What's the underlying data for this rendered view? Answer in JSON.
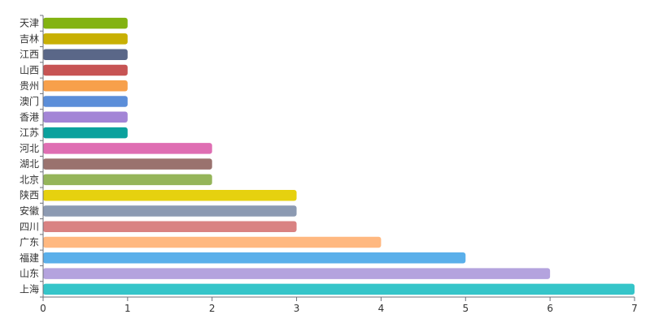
{
  "chart_data": {
    "type": "bar",
    "orientation": "horizontal",
    "categories": [
      "天津",
      "吉林",
      "江西",
      "山西",
      "贵州",
      "澳门",
      "香港",
      "江苏",
      "河北",
      "湖北",
      "北京",
      "陕西",
      "安徽",
      "四川",
      "广东",
      "福建",
      "山东",
      "上海"
    ],
    "values": [
      1,
      1,
      1,
      1,
      1,
      1,
      1,
      1,
      2,
      2,
      2,
      3,
      3,
      3,
      4,
      5,
      6,
      7
    ],
    "colors": [
      "#83b311",
      "#c8b004",
      "#5a6788",
      "#c75454",
      "#f7a04b",
      "#5b8ed9",
      "#a385d6",
      "#0ba19d",
      "#df6eb3",
      "#9a726e",
      "#95b55a",
      "#e6d10f",
      "#8c9ab2",
      "#d98282",
      "#ffb880",
      "#5aafea",
      "#b4a3de",
      "#35c5c9"
    ],
    "xlim": [
      0,
      7
    ],
    "xticks": [
      "0",
      "1",
      "2",
      "3",
      "4",
      "5",
      "6",
      "7"
    ],
    "title": "",
    "xlabel": "",
    "ylabel": "",
    "grid": false,
    "legend": "none"
  }
}
